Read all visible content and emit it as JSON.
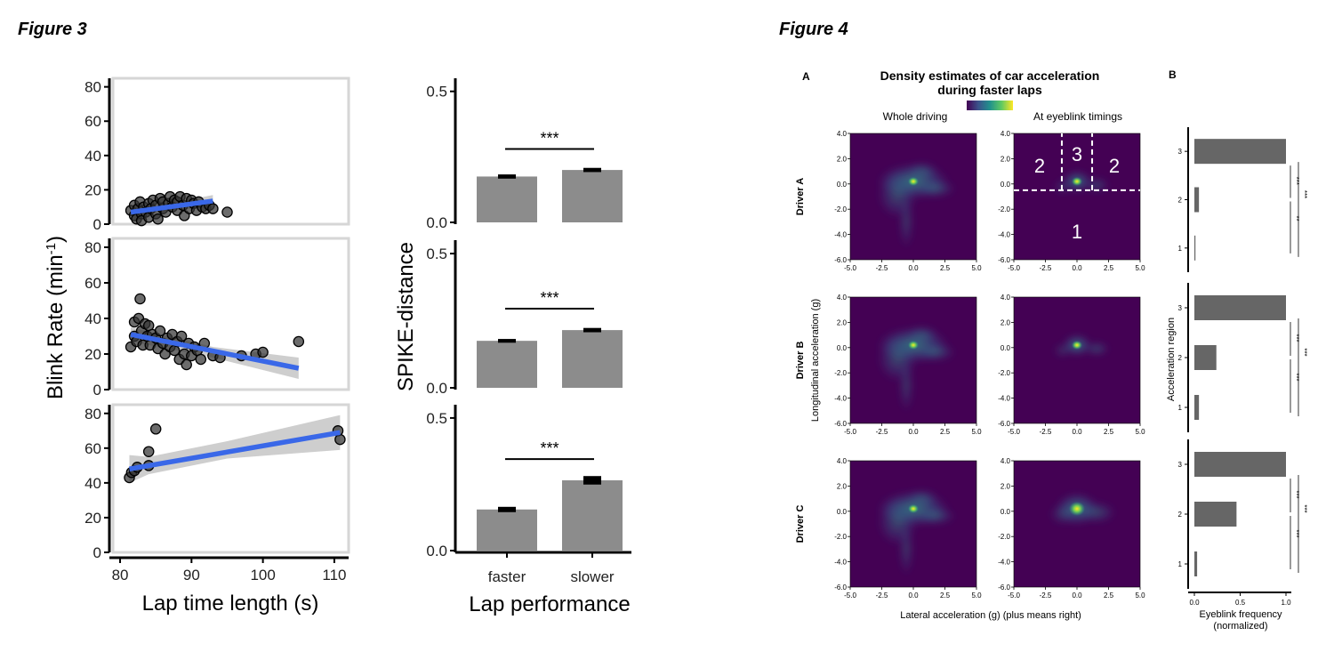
{
  "figure3_title": "Figure 3",
  "figure4_title": "Figure 4",
  "colors": {
    "point": "#333333",
    "fit_line": "#3a68e8",
    "ci_band": "#bdbdbd",
    "bar": "#8c8c8c",
    "bar4": "#666666",
    "panel_border": "#d6d6d6",
    "viridis_dark": "#440154",
    "viridis_mid": "#21918c",
    "viridis_light": "#5ec962",
    "viridis_yellow": "#fde725"
  },
  "chart_data": [
    {
      "id": "fig3-scatter",
      "type": "scatter",
      "title": "",
      "xlabel": "Lap time length (s)",
      "ylabel": "Blink Rate (min",
      "ylabel_sup": "-1",
      "ylabel_close": ")",
      "xlim": [
        79,
        112
      ],
      "ylim": [
        0,
        85
      ],
      "xticks": [
        "80",
        "90",
        "100",
        "110"
      ],
      "xtick_values": [
        80,
        90,
        100,
        110
      ],
      "yticks": [
        "0",
        "20",
        "40",
        "60",
        "80"
      ],
      "ytick_values": [
        0,
        20,
        40,
        60,
        80
      ],
      "panels": [
        {
          "name": "Driver A",
          "points": [
            [
              81.5,
              8
            ],
            [
              82,
              5
            ],
            [
              82,
              11
            ],
            [
              82.3,
              3
            ],
            [
              82.5,
              9
            ],
            [
              82.8,
              13
            ],
            [
              83,
              6
            ],
            [
              83,
              2
            ],
            [
              83.3,
              10
            ],
            [
              83.6,
              7
            ],
            [
              84,
              12
            ],
            [
              84,
              4
            ],
            [
              84.3,
              9
            ],
            [
              84.6,
              14
            ],
            [
              85,
              6
            ],
            [
              85,
              11
            ],
            [
              85.3,
              3
            ],
            [
              85.6,
              15
            ],
            [
              86,
              9
            ],
            [
              86,
              13
            ],
            [
              86.4,
              7
            ],
            [
              86.8,
              12
            ],
            [
              87,
              16
            ],
            [
              87.3,
              10
            ],
            [
              87.6,
              14
            ],
            [
              88,
              8
            ],
            [
              88,
              13
            ],
            [
              88.4,
              16
            ],
            [
              88.8,
              11
            ],
            [
              89,
              5
            ],
            [
              89.3,
              15
            ],
            [
              89.7,
              9
            ],
            [
              90,
              14
            ],
            [
              90.3,
              12
            ],
            [
              90.7,
              8
            ],
            [
              91,
              13
            ],
            [
              91.5,
              10
            ],
            [
              92,
              9
            ],
            [
              92.5,
              11
            ],
            [
              93,
              9
            ],
            [
              95,
              7
            ]
          ],
          "fit": {
            "x": [
              81.5,
              93
            ],
            "y": [
              7,
              13.5
            ]
          },
          "ci": {
            "x": [
              81.5,
              87,
              93
            ],
            "upper": [
              9.5,
              12,
              17
            ],
            "lower": [
              4.5,
              8,
              10
            ]
          }
        },
        {
          "name": "Driver B",
          "points": [
            [
              81.5,
              24
            ],
            [
              82,
              38
            ],
            [
              82,
              30
            ],
            [
              82.3,
              27
            ],
            [
              82.6,
              40
            ],
            [
              82.8,
              51
            ],
            [
              83,
              33
            ],
            [
              83.2,
              25
            ],
            [
              83.5,
              37
            ],
            [
              83.8,
              30
            ],
            [
              84,
              36
            ],
            [
              84.2,
              25
            ],
            [
              84.5,
              31
            ],
            [
              85,
              29
            ],
            [
              85.3,
              23
            ],
            [
              85.6,
              33
            ],
            [
              86,
              26
            ],
            [
              86.3,
              20
            ],
            [
              86.6,
              29
            ],
            [
              87,
              24
            ],
            [
              87.3,
              31
            ],
            [
              87.6,
              22
            ],
            [
              88,
              27
            ],
            [
              88.3,
              17
            ],
            [
              88.6,
              30
            ],
            [
              89,
              20
            ],
            [
              89.3,
              14
            ],
            [
              89.6,
              26
            ],
            [
              90,
              19
            ],
            [
              90.4,
              24
            ],
            [
              90.8,
              22
            ],
            [
              91.3,
              17
            ],
            [
              91.8,
              26
            ],
            [
              93,
              19
            ],
            [
              94,
              18
            ],
            [
              97,
              19
            ],
            [
              99,
              20
            ],
            [
              100,
              21
            ],
            [
              105,
              27
            ]
          ],
          "fit": {
            "x": [
              81.5,
              105
            ],
            "y": [
              31,
              12
            ]
          },
          "ci": {
            "x": [
              81.5,
              93,
              105
            ],
            "upper": [
              35,
              24,
              18
            ],
            "lower": [
              27,
              18,
              6
            ]
          }
        },
        {
          "name": "Driver C",
          "points": [
            [
              81.3,
              43
            ],
            [
              81.6,
              46
            ],
            [
              82,
              47
            ],
            [
              82.4,
              49
            ],
            [
              84,
              50
            ],
            [
              84,
              58
            ],
            [
              85,
              71
            ],
            [
              110.5,
              70
            ],
            [
              110.8,
              65
            ]
          ],
          "fit": {
            "x": [
              81.3,
              110.8
            ],
            "y": [
              48,
              69
            ]
          },
          "ci": {
            "x": [
              81.3,
              84,
              95,
              110.8
            ],
            "upper": [
              56,
              55,
              64,
              79
            ],
            "lower": [
              40,
              45,
              54,
              59
            ]
          }
        }
      ]
    },
    {
      "id": "fig3-bars",
      "type": "bar",
      "title": "",
      "xlabel": "Lap performance",
      "ylabel": "SPIKE-distance",
      "categories": [
        "faster",
        "slower"
      ],
      "ylim": [
        0,
        0.55
      ],
      "yticks": [
        "0.0",
        "0.5"
      ],
      "ytick_values": [
        0,
        0.5
      ],
      "significance": "***",
      "panels": [
        {
          "name": "Driver A",
          "values": [
            0.175,
            0.2
          ],
          "errors": [
            0.008,
            0.008
          ]
        },
        {
          "name": "Driver B",
          "values": [
            0.175,
            0.215
          ],
          "errors": [
            0.007,
            0.008
          ]
        },
        {
          "name": "Driver C",
          "values": [
            0.155,
            0.265
          ],
          "errors": [
            0.01,
            0.016
          ]
        }
      ]
    },
    {
      "id": "fig4-density",
      "type": "heatmap",
      "panel_label": "A",
      "title_line1": "Density estimates of car acceleration",
      "title_line2": "during faster laps",
      "col_titles": [
        "Whole driving",
        "At eyeblink timings"
      ],
      "row_titles": [
        "Driver A",
        "Driver B",
        "Driver C"
      ],
      "xlabel": "Lateral acceleration (g) (plus means right)",
      "ylabel": "Longitudinal acceleration (g)",
      "xlim": [
        -5,
        5
      ],
      "ylim": [
        -6,
        4
      ],
      "xticks": [
        "-5.0",
        "-2.5",
        "0.0",
        "2.5",
        "5.0"
      ],
      "xtick_values": [
        -5,
        -2.5,
        0,
        2.5,
        5
      ],
      "yticks": [
        "-6.0",
        "-4.0",
        "-2.0",
        "0.0",
        "2.0",
        "4.0"
      ],
      "ytick_values": [
        -6,
        -4,
        -2,
        0,
        2,
        4
      ],
      "region_labels": [
        "1",
        "2",
        "3",
        "2"
      ],
      "region_bounds": {
        "longitudinal_threshold": -0.5,
        "lateral_left": -1.2,
        "lateral_right": 1.2
      },
      "density_peak": {
        "x": 0,
        "y": 0.2
      }
    },
    {
      "id": "fig4-eyeblink",
      "type": "bar",
      "panel_label": "B",
      "orientation": "horizontal",
      "xlabel": "Eyeblink frequency",
      "xlabel_line2": "(normalized)",
      "ylabel": "Acceleration region",
      "categories": [
        "1",
        "2",
        "3"
      ],
      "xlim": [
        0,
        1.05
      ],
      "xticks": [
        "0.0",
        "0.5",
        "1.0"
      ],
      "xtick_values": [
        0,
        0.5,
        1.0
      ],
      "panels": [
        {
          "name": "Driver A",
          "values": [
            0.01,
            0.05,
            1.0
          ],
          "sig_inner_top": "***",
          "sig_inner_bottom": "**",
          "sig_outer": "***"
        },
        {
          "name": "Driver B",
          "values": [
            0.05,
            0.24,
            1.0
          ],
          "sig_inner_top": "***",
          "sig_inner_bottom": "***",
          "sig_outer": "***"
        },
        {
          "name": "Driver C",
          "values": [
            0.03,
            0.46,
            1.0
          ],
          "sig_inner_top": "***",
          "sig_inner_bottom": "***",
          "sig_outer": "***"
        }
      ]
    }
  ]
}
